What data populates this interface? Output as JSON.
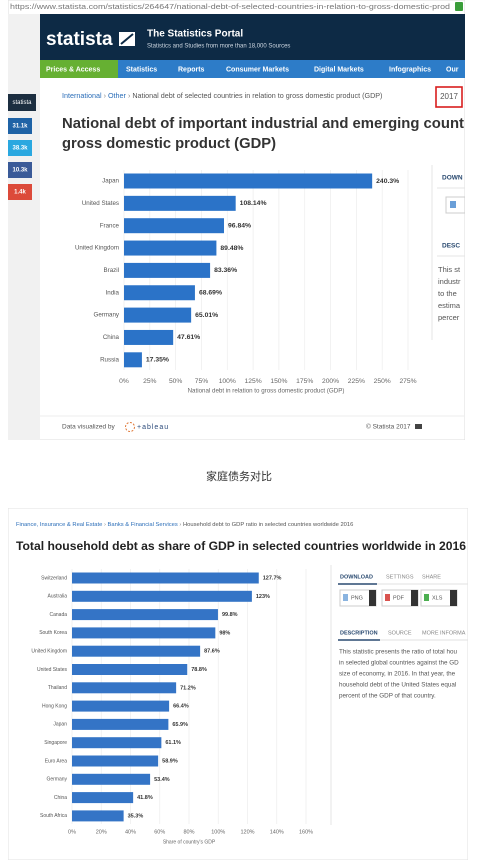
{
  "browser": {
    "url": "https://www.statista.com/statistics/264647/national-debt-of-selected-countries-in-relation-to-gross-domestic-prod"
  },
  "header": {
    "logo": "statista",
    "title": "The Statistics Portal",
    "subtitle": "Statistics and Studies from more than 18,000 Sources"
  },
  "nav": [
    "Prices & Access",
    "Statistics",
    "Reports",
    "Consumer Markets",
    "Digital Markets",
    "Infographics",
    "Our"
  ],
  "sidebar": {
    "brand": "statista",
    "counts": [
      "31.1k",
      "38.3k",
      "10.3k",
      "1.4k"
    ]
  },
  "breadcrumb_1": {
    "separator": "›",
    "links": [
      "International",
      "Other"
    ],
    "current": "National debt of selected countries in relation to gross domestic product (GDP)",
    "year": "2017"
  },
  "panel_1": {
    "download": "DOWN",
    "description": "DESC",
    "text": [
      "This st",
      "industr",
      "to the",
      "estima",
      "percer"
    ]
  },
  "footer_1": {
    "credit": "Data visualized by",
    "tool": "+ableau",
    "copyright": "© Statista 2017"
  },
  "caption": "家庭债务对比",
  "breadcrumb_2": {
    "separator": "›",
    "links": [
      "Finance, Insurance & Real Estate",
      "Banks & Financial Services"
    ],
    "current": "Household debt to GDP ratio in selected countries worldwide 2016"
  },
  "panel_2": {
    "tabs": [
      "DOWNLOAD",
      "SETTINGS",
      "SHARE"
    ],
    "buttons": [
      "PNG",
      "PDF",
      "XLS"
    ],
    "info_tabs": [
      "DESCRIPTION",
      "SOURCE",
      "MORE INFORMA"
    ],
    "text": [
      "This statistic presents the ratio of total hou",
      "in selected global countries against the GD",
      "size of economy, in 2016. In that year, the",
      "household debt of the United States equal",
      "percent of the GDP of that country."
    ]
  },
  "chart_data": [
    {
      "type": "hbar",
      "title": [
        "National debt of important industrial and emerging count",
        "gross domestic product (GDP)"
      ],
      "categories": [
        "Japan",
        "United States",
        "France",
        "United Kingdom",
        "Brazil",
        "India",
        "Germany",
        "China",
        "Russia"
      ],
      "values": [
        240.3,
        108.14,
        96.84,
        89.48,
        83.36,
        68.69,
        65.01,
        47.61,
        17.35
      ],
      "value_labels": [
        "240.3%",
        "108.14%",
        "96.84%",
        "89.48%",
        "83.36%",
        "68.69%",
        "65.01%",
        "47.61%",
        "17.35%"
      ],
      "color": "#2b73c8",
      "xlabel": "National debt in relation to gross domestic product (GDP)",
      "xlim": [
        0,
        275
      ],
      "xticks": [
        {
          "value": 0,
          "label": "0%"
        },
        {
          "value": 25,
          "label": "25%"
        },
        {
          "value": 50,
          "label": "50%"
        },
        {
          "value": 75,
          "label": "75%"
        },
        {
          "value": 100,
          "label": "100%"
        },
        {
          "value": 125,
          "label": "125%"
        },
        {
          "value": 150,
          "label": "150%"
        },
        {
          "value": 175,
          "label": "175%"
        },
        {
          "value": 200,
          "label": "200%"
        },
        {
          "value": 225,
          "label": "225%"
        },
        {
          "value": 250,
          "label": "250%"
        },
        {
          "value": 275,
          "label": "275%"
        }
      ],
      "grid": true
    },
    {
      "type": "hbar",
      "title": "Total household debt as share of GDP in selected countries worldwide in 2016",
      "categories": [
        "Switzerland",
        "Australia",
        "Canada",
        "South Korea",
        "United Kingdom",
        "United States",
        "Thailand",
        "Hong Kong",
        "Japan",
        "Singapore",
        "Euro Area",
        "Germany",
        "China",
        "South Africa"
      ],
      "values": [
        127.7,
        123,
        99.8,
        98,
        87.6,
        78.8,
        71.2,
        66.4,
        65.9,
        61.1,
        58.9,
        53.4,
        41.8,
        35.3
      ],
      "value_labels": [
        "127.7%",
        "123%",
        "99.8%",
        "98%",
        "87.6%",
        "78.8%",
        "71.2%",
        "66.4%",
        "65.9%",
        "61.1%",
        "58.9%",
        "53.4%",
        "41.8%",
        "35.3%"
      ],
      "color": "#3474c6",
      "xlabel": "Share of country's GDP",
      "xlim": [
        0,
        160
      ],
      "xticks": [
        {
          "value": 0,
          "label": "0%"
        },
        {
          "value": 20,
          "label": "20%"
        },
        {
          "value": 40,
          "label": "40%"
        },
        {
          "value": 60,
          "label": "60%"
        },
        {
          "value": 80,
          "label": "80%"
        },
        {
          "value": 100,
          "label": "100%"
        },
        {
          "value": 120,
          "label": "120%"
        },
        {
          "value": 140,
          "label": "140%"
        },
        {
          "value": 160,
          "label": "160%"
        }
      ],
      "grid": true
    }
  ]
}
